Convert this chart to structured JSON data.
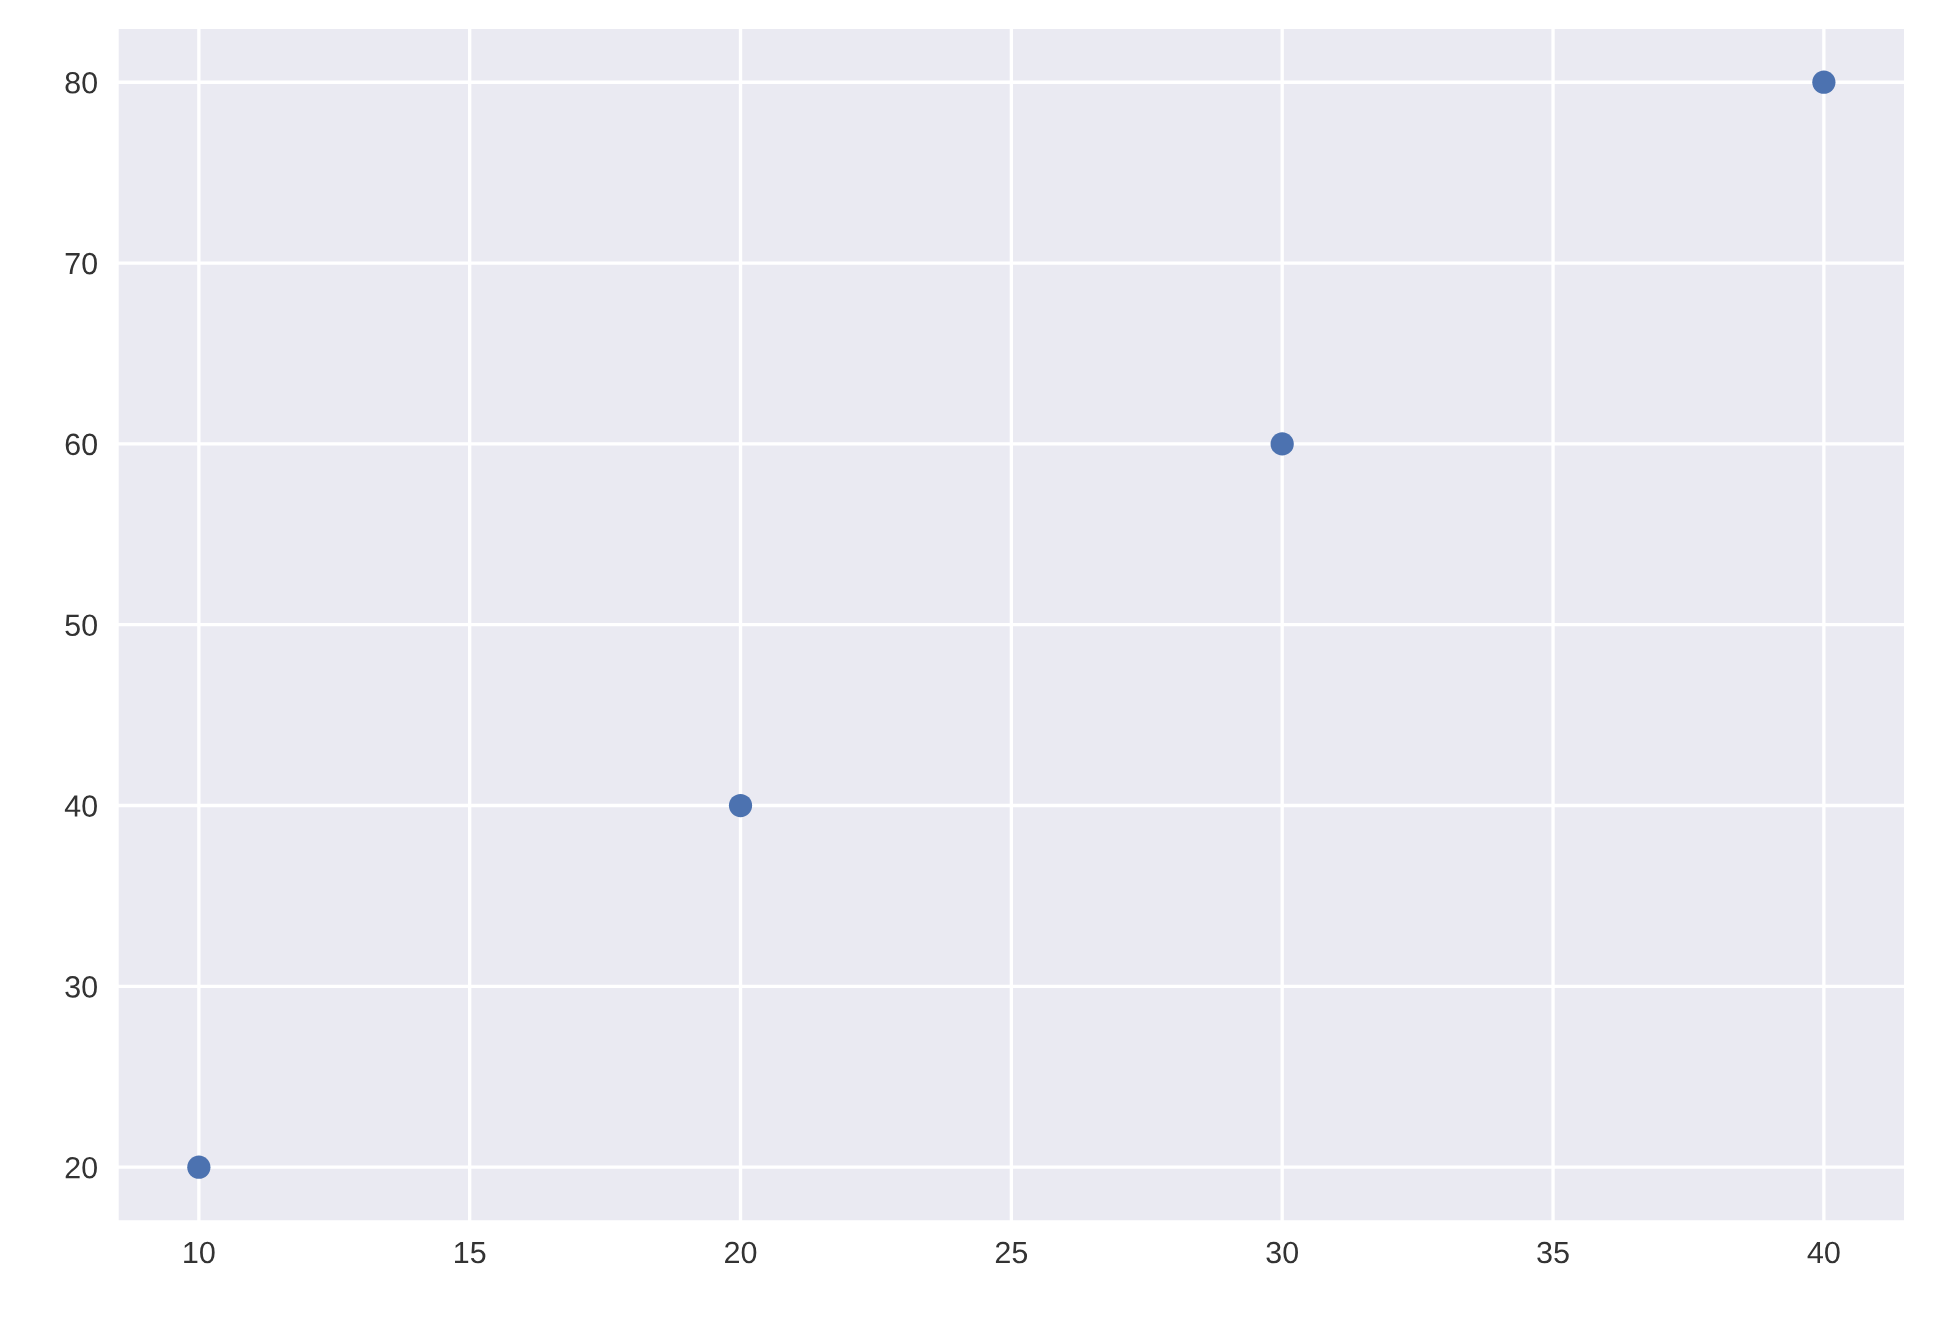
{
  "chart_data": {
    "type": "scatter",
    "x": [
      10,
      20,
      30,
      40
    ],
    "series": [
      {
        "color": "#4c72b0",
        "values": [
          20,
          40,
          60,
          80
        ]
      }
    ],
    "xlim": [
      8.5,
      41.5
    ],
    "ylim": [
      17,
      83
    ],
    "xticks": [
      10,
      15,
      20,
      25,
      30,
      35,
      40
    ],
    "yticks": [
      20,
      30,
      40,
      50,
      60,
      70,
      80
    ],
    "grid": true,
    "marker": "circle"
  }
}
